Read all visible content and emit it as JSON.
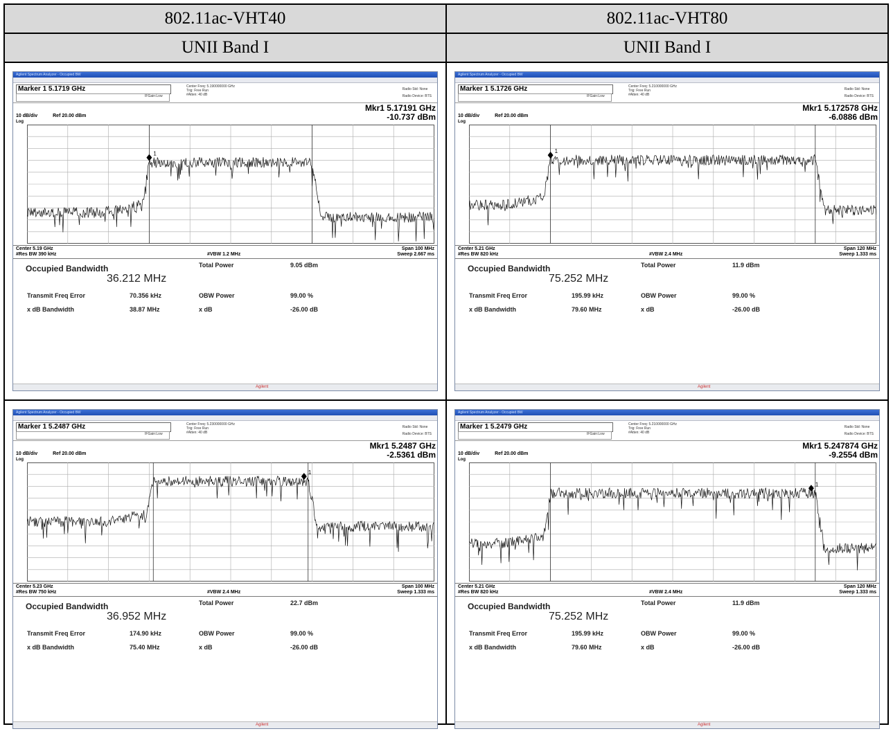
{
  "table": {
    "col_headers": [
      "802.11ac-VHT40",
      "802.11ac-VHT80"
    ],
    "band_labels": [
      "UNII Band I",
      "UNII Band I"
    ]
  },
  "app": {
    "title": "Agilent Spectrum Analyzer - Occupied BW",
    "logo": "Agilent"
  },
  "shots": [
    {
      "marker_label": "Marker 1 5.1719 GHz",
      "center_freq": "Center Freq: 5.190000000 GHz",
      "trig": "Trig: Free Run",
      "atten": "#Atten: 40 dB",
      "gate": "IFGain:Low",
      "radio_std": "Radio Std: None",
      "radio_device": "Radio Device: BTS",
      "mkr_freq": "Mkr1  5.17191 GHz",
      "mkr_level": "-10.737 dBm",
      "scale": "10 dB/div",
      "ref": "Ref 20.00 dBm",
      "log": "Log",
      "center": "Center  5.19 GHz",
      "res_bw": "#Res BW  390 kHz",
      "vbw": "#VBW  1.2 MHz",
      "span": "Span 100 MHz",
      "sweep": "Sweep  2.667 ms",
      "obw_label": "Occupied Bandwidth",
      "obw_value": "36.212 MHz",
      "tp_label": "Total Power",
      "tp_value": "9.05 dBm",
      "tfe_label": "Transmit Freq Error",
      "tfe_value": "70.356 kHz",
      "obwp_label": "OBW Power",
      "obwp_value": "99.00 %",
      "xdb_bw_label": "x dB Bandwidth",
      "xdb_bw_value": "38.87 MHz",
      "xdb_label": "x dB",
      "xdb_value": "-26.00 dB",
      "marker_num": "1",
      "plateau_start": 0.3,
      "plateau_end": 0.7,
      "marker_pos": 0.3,
      "floor_level": 0.72,
      "plateau_level": 0.3
    },
    {
      "marker_label": "Marker 1 5.1726 GHz",
      "center_freq": "Center Freq: 5.210000000 GHz",
      "trig": "Trig: Free Run",
      "atten": "#Atten: 40 dB",
      "gate": "IFGain:Low",
      "radio_std": "Radio Std: None",
      "radio_device": "Radio Device: BTS",
      "mkr_freq": "Mkr1  5.172578 GHz",
      "mkr_level": "-6.0886 dBm",
      "scale": "10 dB/div",
      "ref": "Ref 20.00 dBm",
      "log": "Log",
      "center": "Center  5.21 GHz",
      "res_bw": "#Res BW  820 kHz",
      "vbw": "#VBW  2.4 MHz",
      "span": "Span 120 MHz",
      "sweep": "Sweep  1.333 ms",
      "obw_label": "Occupied Bandwidth",
      "obw_value": "75.252 MHz",
      "tp_label": "Total Power",
      "tp_value": "11.9 dBm",
      "tfe_label": "Transmit Freq Error",
      "tfe_value": "195.99 kHz",
      "obwp_label": "OBW Power",
      "obwp_value": "99.00 %",
      "xdb_bw_label": "x dB Bandwidth",
      "xdb_bw_value": "79.60 MHz",
      "xdb_label": "x dB",
      "xdb_value": "-26.00 dB",
      "marker_num": "1",
      "plateau_start": 0.2,
      "plateau_end": 0.85,
      "marker_pos": 0.2,
      "floor_level": 0.66,
      "plateau_level": 0.28
    },
    {
      "marker_label": "Marker 1 5.2487 GHz",
      "center_freq": "Center Freq: 5.230000000 GHz",
      "trig": "Trig: Free Run",
      "atten": "#Atten: 40 dB",
      "gate": "IFGain:Low",
      "radio_std": "Radio Std: None",
      "radio_device": "Radio Device: BTS",
      "mkr_freq": "Mkr1  5.2487 GHz",
      "mkr_level": "-2.5361 dBm",
      "scale": "10 dB/div",
      "ref": "Ref 20.00 dBm",
      "log": "Log",
      "center": "Center  5.23 GHz",
      "res_bw": "#Res BW  750 kHz",
      "vbw": "#VBW  2.4 MHz",
      "span": "Span 100 MHz",
      "sweep": "Sweep  1.333 ms",
      "obw_label": "Occupied Bandwidth",
      "obw_value": "36.952 MHz",
      "tp_label": "Total Power",
      "tp_value": "22.7 dBm",
      "tfe_label": "Transmit Freq Error",
      "tfe_value": "174.90 kHz",
      "obwp_label": "OBW Power",
      "obwp_value": "99.00 %",
      "xdb_bw_label": "x dB Bandwidth",
      "xdb_bw_value": "75.40 MHz",
      "xdb_label": "x dB",
      "xdb_value": "-26.00 dB",
      "marker_num": "1",
      "plateau_start": 0.31,
      "plateau_end": 0.69,
      "marker_pos": 0.68,
      "floor_level": 0.48,
      "plateau_level": 0.14
    },
    {
      "marker_label": "Marker 1 5.2479 GHz",
      "center_freq": "Center Freq: 5.210000000 GHz",
      "trig": "Trig: Free Run",
      "atten": "#Atten: 40 dB",
      "gate": "IFGain:Low",
      "radio_std": "Radio Std: None",
      "radio_device": "Radio Device: BTS",
      "mkr_freq": "Mkr1  5.247874 GHz",
      "mkr_level": "-9.2554 dBm",
      "scale": "10 dB/div",
      "ref": "Ref 20.00 dBm",
      "log": "Log",
      "center": "Center  5.21 GHz",
      "res_bw": "#Res BW  820 kHz",
      "vbw": "#VBW  2.4 MHz",
      "span": "Span 120 MHz",
      "sweep": "Sweep  1.333 ms",
      "obw_label": "Occupied Bandwidth",
      "obw_value": "75.252 MHz",
      "tp_label": "Total Power",
      "tp_value": "11.9 dBm",
      "tfe_label": "Transmit Freq Error",
      "tfe_value": "195.99 kHz",
      "obwp_label": "OBW Power",
      "obwp_value": "99.00 %",
      "xdb_bw_label": "x dB Bandwidth",
      "xdb_bw_value": "79.60 MHz",
      "xdb_label": "x dB",
      "xdb_value": "-26.00 dB",
      "marker_num": "1",
      "plateau_start": 0.2,
      "plateau_end": 0.85,
      "marker_pos": 0.84,
      "floor_level": 0.66,
      "plateau_level": 0.24
    }
  ]
}
